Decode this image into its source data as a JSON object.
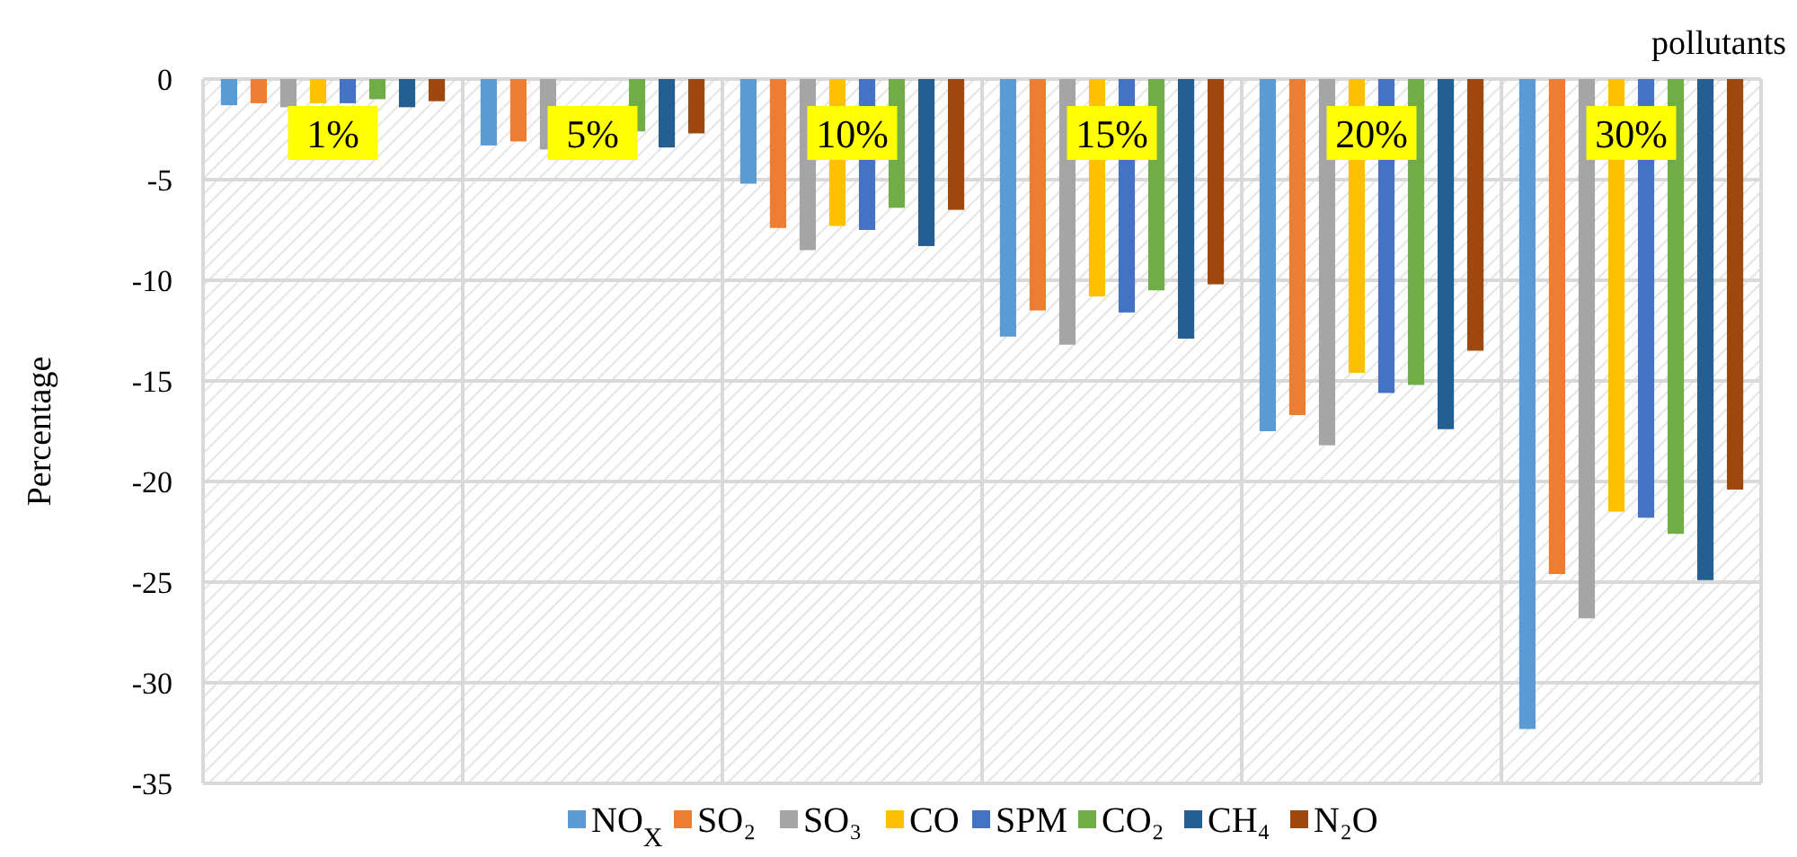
{
  "chart_data": {
    "type": "bar",
    "xlabel": "pollutants",
    "ylabel": "Percentage",
    "categories": [
      "1%",
      "5%",
      "10%",
      "15%",
      "20%",
      "30%"
    ],
    "series": [
      {
        "name": "NO$_{X}$",
        "color": "#5b9bd5",
        "values": [
          -1.3,
          -3.3,
          -5.2,
          -12.8,
          -17.5,
          -32.3
        ]
      },
      {
        "name": "SO₂",
        "color": "#ed7d31",
        "values": [
          -1.2,
          -3.1,
          -7.4,
          -11.5,
          -16.7,
          -24.6
        ]
      },
      {
        "name": "SO₃",
        "color": "#a5a5a5",
        "values": [
          -1.4,
          -3.5,
          -8.5,
          -13.2,
          -18.2,
          -26.8
        ]
      },
      {
        "name": "CO",
        "color": "#ffc000",
        "values": [
          -1.2,
          null,
          -7.3,
          -10.8,
          -14.6,
          -21.5
        ]
      },
      {
        "name": "SPM",
        "color": "#4472c4",
        "values": [
          -1.2,
          null,
          -7.5,
          -11.6,
          -15.6,
          -21.8
        ]
      },
      {
        "name": "CO₂",
        "color": "#70ad47",
        "values": [
          -1.0,
          -2.6,
          -6.4,
          -10.5,
          -15.2,
          -22.6
        ]
      },
      {
        "name": "CH₄",
        "color": "#255e91",
        "values": [
          -1.4,
          -3.4,
          -8.3,
          -12.9,
          -17.4,
          -24.9
        ]
      },
      {
        "name": "N₂O",
        "color": "#9e480e",
        "values": [
          -1.1,
          -2.7,
          -6.5,
          -10.2,
          -13.5,
          -20.4
        ]
      }
    ],
    "ylim": [
      -35,
      0
    ],
    "yticks": [
      -35,
      -30,
      -25,
      -20,
      -15,
      -10,
      -5,
      0
    ],
    "grid": true,
    "legend": "bottom"
  }
}
